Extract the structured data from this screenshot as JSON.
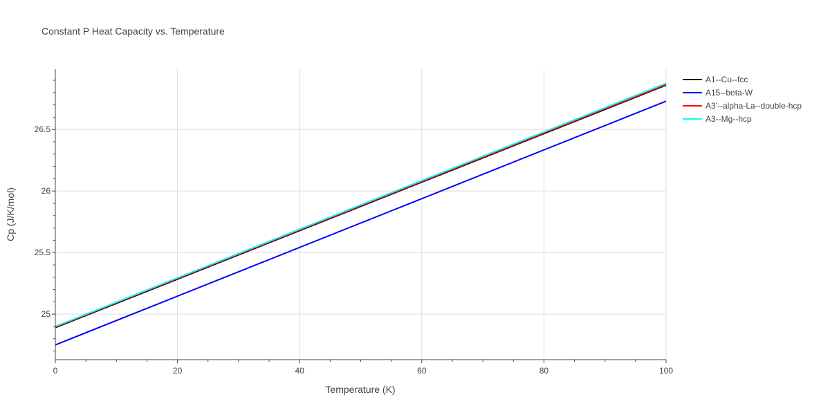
{
  "chart_data": {
    "type": "line",
    "title": "Constant P Heat Capacity vs. Temperature",
    "xlabel": "Temperature (K)",
    "ylabel": "Cp (J/K/mol)",
    "xlim": [
      0,
      100
    ],
    "ylim": [
      24.63,
      26.99
    ],
    "x_ticks": [
      0,
      20,
      40,
      60,
      80,
      100
    ],
    "x_tick_labels": [
      "0",
      "20",
      "40",
      "60",
      "80",
      "100"
    ],
    "y_ticks": [
      25,
      25.5,
      26,
      26.5
    ],
    "y_tick_labels": [
      "25",
      "25.5",
      "26",
      "26.5"
    ],
    "grid": true,
    "legend_position": "right",
    "series": [
      {
        "name": "A1--Cu--fcc",
        "color": "#000000",
        "x": [
          0,
          100
        ],
        "y": [
          24.89,
          26.86
        ]
      },
      {
        "name": "A15--beta-W",
        "color": "#0000ff",
        "x": [
          0,
          100
        ],
        "y": [
          24.75,
          26.73
        ]
      },
      {
        "name": "A3'--alpha-La--double-hcp",
        "color": "#ff0000",
        "x": [
          0,
          100
        ],
        "y": [
          24.895,
          26.865
        ]
      },
      {
        "name": "A3--Mg--hcp",
        "color": "#00ffff",
        "x": [
          0,
          100
        ],
        "y": [
          24.9,
          26.875
        ]
      }
    ]
  }
}
